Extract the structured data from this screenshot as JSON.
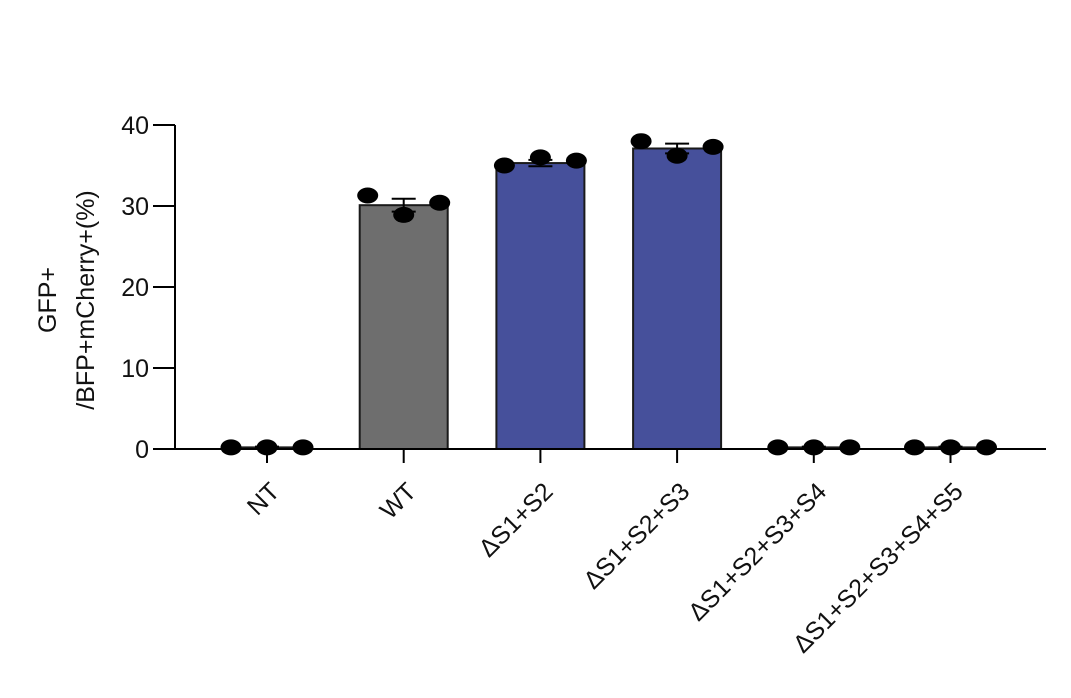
{
  "chart_data": {
    "type": "bar",
    "title": "",
    "xlabel": "",
    "ylabel_lines": [
      "GFP+",
      "/BFP+mCherry+(%)"
    ],
    "ylim": [
      0,
      40
    ],
    "yticks": [
      0,
      10,
      20,
      30,
      40
    ],
    "categories": [
      "NT",
      "WT",
      "ΔS1+S2",
      "ΔS1+S2+S3",
      "ΔS1+S2+S3+S4",
      "ΔS1+S2+S3+S4+S5"
    ],
    "values": [
      0.2,
      30.1,
      35.3,
      37.1,
      0.2,
      0.2
    ],
    "error": [
      0.1,
      0.8,
      0.4,
      0.6,
      0.1,
      0.1
    ],
    "points": [
      [
        0.2,
        0.2,
        0.2
      ],
      [
        31.3,
        28.9,
        30.4
      ],
      [
        35.0,
        36.0,
        35.6
      ],
      [
        38.0,
        36.2,
        37.3
      ],
      [
        0.2,
        0.2,
        0.2
      ],
      [
        0.2,
        0.2,
        0.2
      ]
    ],
    "bar_colors": [
      "#6e6e6e",
      "#6e6e6e",
      "#46509b",
      "#46509b",
      "#46509b",
      "#46509b"
    ],
    "point_color": "#000000",
    "grid": false,
    "legend": "none"
  }
}
